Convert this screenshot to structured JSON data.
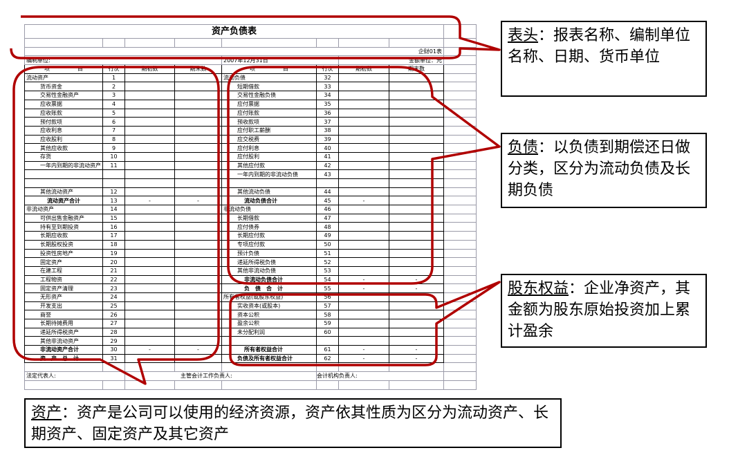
{
  "sheet": {
    "title": "资产负债表",
    "form_no": "企财01表",
    "unit_label": "编制单位:",
    "date": "2007年12月31日",
    "currency": "金额单位：元",
    "headers": [
      "项　　　　　目",
      "行次",
      "期初数",
      "期末数",
      "项　　　　　目",
      "行次",
      "期初数",
      "期末数"
    ],
    "rows": [
      {
        "l": [
          "流动资产",
          "1",
          "",
          ""
        ],
        "r": [
          "流动负债",
          "32",
          "",
          ""
        ],
        "li": 0,
        "ri": 0
      },
      {
        "l": [
          "货币资金",
          "2",
          "",
          ""
        ],
        "r": [
          "短期借款",
          "33",
          "",
          ""
        ],
        "li": 1,
        "ri": 1
      },
      {
        "l": [
          "交易性金融资产",
          "3",
          "",
          ""
        ],
        "r": [
          "交易性金融负债",
          "34",
          "",
          ""
        ],
        "li": 1,
        "ri": 1
      },
      {
        "l": [
          "应收票据",
          "4",
          "",
          ""
        ],
        "r": [
          "应付票据",
          "35",
          "",
          ""
        ],
        "li": 1,
        "ri": 1
      },
      {
        "l": [
          "应收账款",
          "5",
          "",
          ""
        ],
        "r": [
          "应付账款",
          "36",
          "",
          ""
        ],
        "li": 1,
        "ri": 1
      },
      {
        "l": [
          "预付款项",
          "6",
          "",
          ""
        ],
        "r": [
          "预收款项",
          "37",
          "",
          ""
        ],
        "li": 1,
        "ri": 1
      },
      {
        "l": [
          "应收利息",
          "7",
          "",
          ""
        ],
        "r": [
          "应付职工薪酬",
          "38",
          "",
          ""
        ],
        "li": 1,
        "ri": 1
      },
      {
        "l": [
          "应收股利",
          "8",
          "",
          ""
        ],
        "r": [
          "应交税费",
          "39",
          "",
          ""
        ],
        "li": 1,
        "ri": 1
      },
      {
        "l": [
          "其他应收款",
          "9",
          "",
          ""
        ],
        "r": [
          "应付利息",
          "40",
          "",
          ""
        ],
        "li": 1,
        "ri": 1
      },
      {
        "l": [
          "存货",
          "10",
          "",
          ""
        ],
        "r": [
          "应付股利",
          "41",
          "",
          ""
        ],
        "li": 1,
        "ri": 1
      },
      {
        "l": [
          "一年内到期的非流动资产",
          "11",
          "",
          ""
        ],
        "r": [
          "其他应付款",
          "42",
          "",
          ""
        ],
        "li": 1,
        "ri": 1
      },
      {
        "l": [
          "",
          "",
          "",
          ""
        ],
        "r": [
          "一年内到期的非流动负债",
          "43",
          "",
          ""
        ],
        "li": 1,
        "ri": 1
      },
      {
        "l": [
          "",
          "",
          "",
          ""
        ],
        "r": [
          "",
          "",
          "",
          ""
        ],
        "li": 1,
        "ri": 1
      },
      {
        "l": [
          "其他流动资产",
          "12",
          "",
          ""
        ],
        "r": [
          "其他流动负债",
          "44",
          "",
          ""
        ],
        "li": 1,
        "ri": 1
      },
      {
        "l": [
          "流动资产合计",
          "13",
          "-",
          "-"
        ],
        "r": [
          "流动负债合计",
          "45",
          "-",
          ""
        ],
        "li": 2,
        "ri": 2,
        "lb": 1,
        "rb": 1
      },
      {
        "l": [
          "非流动资产",
          "14",
          "",
          ""
        ],
        "r": [
          "非流动负债",
          "46",
          "",
          ""
        ],
        "li": 0,
        "ri": 0
      },
      {
        "l": [
          "可供出售金融资产",
          "15",
          "",
          ""
        ],
        "r": [
          "长期借款",
          "47",
          "",
          ""
        ],
        "li": 1,
        "ri": 1
      },
      {
        "l": [
          "持有至到期投资",
          "16",
          "",
          ""
        ],
        "r": [
          "应付债券",
          "48",
          "",
          ""
        ],
        "li": 1,
        "ri": 1
      },
      {
        "l": [
          "长期应收款",
          "17",
          "",
          ""
        ],
        "r": [
          "长期应付款",
          "49",
          "",
          ""
        ],
        "li": 1,
        "ri": 1
      },
      {
        "l": [
          "长期股权投资",
          "18",
          "",
          ""
        ],
        "r": [
          "专项应付款",
          "50",
          "",
          ""
        ],
        "li": 1,
        "ri": 1
      },
      {
        "l": [
          "投资性房地产",
          "19",
          "",
          ""
        ],
        "r": [
          "预计负债",
          "51",
          "",
          ""
        ],
        "li": 1,
        "ri": 1
      },
      {
        "l": [
          "固定资产",
          "20",
          "",
          ""
        ],
        "r": [
          "递延所得税负债",
          "52",
          "",
          ""
        ],
        "li": 1,
        "ri": 1
      },
      {
        "l": [
          "在建工程",
          "21",
          "",
          ""
        ],
        "r": [
          "其他非流动负债",
          "53",
          "",
          ""
        ],
        "li": 1,
        "ri": 1
      },
      {
        "l": [
          "工程物资",
          "22",
          "",
          ""
        ],
        "r": [
          "非流动负债合计",
          "54",
          "-",
          "-"
        ],
        "li": 1,
        "ri": 2,
        "rb": 1
      },
      {
        "l": [
          "固定资产清理",
          "23",
          "",
          ""
        ],
        "r": [
          "负　债　合　计",
          "55",
          "-",
          "-"
        ],
        "li": 1,
        "ri": 2,
        "rb": 1
      },
      {
        "l": [
          "无形资产",
          "24",
          "",
          ""
        ],
        "r": [
          "所有者权益(或股东权益)",
          "56",
          "",
          ""
        ],
        "li": 1,
        "ri": 0
      },
      {
        "l": [
          "开发支出",
          "25",
          "",
          ""
        ],
        "r": [
          "实收资本(或股本)",
          "57",
          "",
          ""
        ],
        "li": 1,
        "ri": 1
      },
      {
        "l": [
          "商誉",
          "26",
          "",
          ""
        ],
        "r": [
          "资本公积",
          "58",
          "",
          ""
        ],
        "li": 1,
        "ri": 1
      },
      {
        "l": [
          "长期待摊费用",
          "27",
          "",
          ""
        ],
        "r": [
          "盈余公积",
          "59",
          "",
          ""
        ],
        "li": 1,
        "ri": 1
      },
      {
        "l": [
          "递延所得税资产",
          "28",
          "",
          ""
        ],
        "r": [
          "未分配利润",
          "60",
          "",
          ""
        ],
        "li": 1,
        "ri": 1
      },
      {
        "l": [
          "其他非流动资产",
          "29",
          "",
          ""
        ],
        "r": [
          "",
          "",
          "",
          ""
        ],
        "li": 1,
        "ri": 1
      },
      {
        "l": [
          "非流动资产合计",
          "30",
          "-",
          "-"
        ],
        "r": [
          "所有者权益合计",
          "61",
          "-",
          "-"
        ],
        "li": 1,
        "ri": 2,
        "lb": 1,
        "rb": 1
      },
      {
        "l": [
          "资　产　总　计",
          "31",
          "-",
          "-"
        ],
        "r": [
          "负债及所有者权益合计",
          "62",
          "-",
          "-"
        ],
        "li": 1,
        "ri": 1,
        "lb": 1,
        "rb": 1
      }
    ],
    "footer": {
      "legal_rep": "法定代表人:",
      "chief_accountant": "主管会计工作负责人:",
      "accounting_head": "会计机构负责人:"
    }
  },
  "callouts": {
    "header": {
      "term": "表头",
      "text": "：报表名称、编制单位名称、日期、货币单位"
    },
    "liabilities": {
      "term": "负债",
      "text": "：以负债到期偿还日做分类，区分为流动负债及长期负债"
    },
    "equity": {
      "term": "股东权益",
      "text": "：企业净资产，其金额为股东原始投资加上累计盈余"
    },
    "assets": {
      "term": "资产",
      "text": "：资产是公司可以使用的经济资源，资产依其性质为区分为流动资产、长期资产、固定资产及其它资产"
    }
  },
  "colors": {
    "highlight": "#b00000",
    "border": "#000000",
    "grid": "#9a9aa8"
  }
}
